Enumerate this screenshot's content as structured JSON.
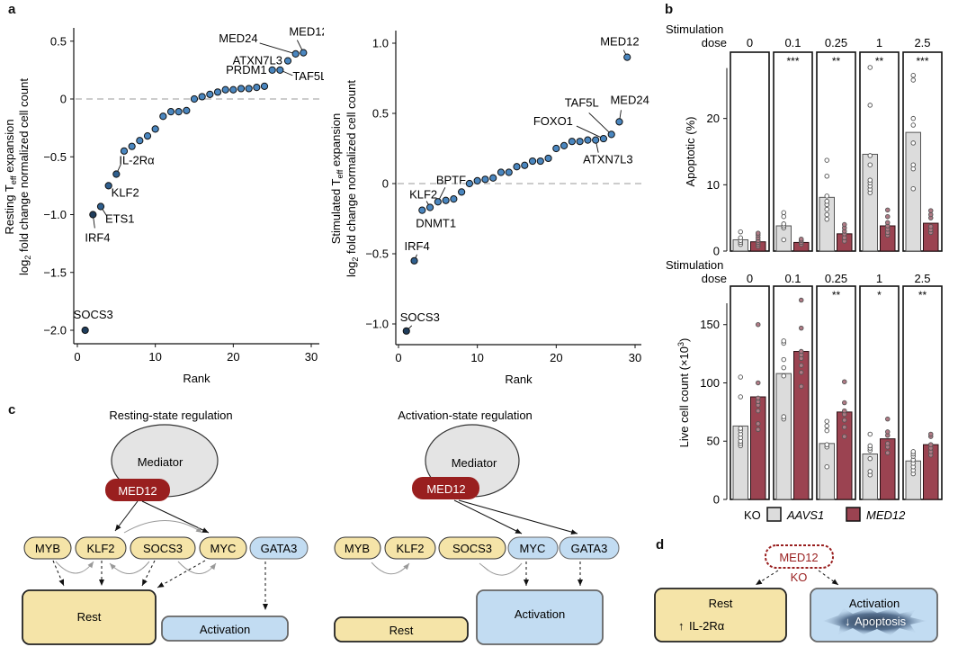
{
  "panels": {
    "a": "a",
    "b": "b",
    "c": "c",
    "d": "d"
  },
  "chart_data": [
    {
      "id": "resting",
      "type": "scatter",
      "title": "",
      "xlabel": "Rank",
      "ylabel_line1": "Resting T",
      "ylabel_sub1": "eff",
      "ylabel_line1_tail": " expansion",
      "ylabel_line2_pre": "log",
      "ylabel_sub2": "2",
      "ylabel_line2_tail": " fold change normalized cell count",
      "xlim": [
        0,
        30
      ],
      "ylim": [
        -2.1,
        0.6
      ],
      "xticks": [
        0,
        10,
        20,
        30
      ],
      "yticks": [
        0.5,
        0,
        -0.5,
        -1.0,
        -1.5,
        -2.0
      ],
      "ytick_labels": [
        "0.5",
        "0",
        "−0.5",
        "−1.0",
        "−1.5",
        "−2.0"
      ],
      "reference_line": 0,
      "points": [
        {
          "rank": 1,
          "value": -2.0,
          "label": "SOCS3"
        },
        {
          "rank": 2,
          "value": -1.0,
          "label": "IRF4"
        },
        {
          "rank": 3,
          "value": -0.93,
          "label": "ETS1"
        },
        {
          "rank": 4,
          "value": -0.75,
          "label": "KLF2"
        },
        {
          "rank": 5,
          "value": -0.65,
          "label": "IL-2Rα"
        },
        {
          "rank": 6,
          "value": -0.45
        },
        {
          "rank": 7,
          "value": -0.41
        },
        {
          "rank": 8,
          "value": -0.36
        },
        {
          "rank": 9,
          "value": -0.32
        },
        {
          "rank": 10,
          "value": -0.26
        },
        {
          "rank": 11,
          "value": -0.15
        },
        {
          "rank": 12,
          "value": -0.11
        },
        {
          "rank": 13,
          "value": -0.11
        },
        {
          "rank": 14,
          "value": -0.1
        },
        {
          "rank": 15,
          "value": 0.0
        },
        {
          "rank": 16,
          "value": 0.02
        },
        {
          "rank": 17,
          "value": 0.04
        },
        {
          "rank": 18,
          "value": 0.06
        },
        {
          "rank": 19,
          "value": 0.08
        },
        {
          "rank": 20,
          "value": 0.08
        },
        {
          "rank": 21,
          "value": 0.09
        },
        {
          "rank": 22,
          "value": 0.09
        },
        {
          "rank": 23,
          "value": 0.1
        },
        {
          "rank": 24,
          "value": 0.11
        },
        {
          "rank": 25,
          "value": 0.25,
          "label": "PRDM1"
        },
        {
          "rank": 26,
          "value": 0.25,
          "label": "TAF5L"
        },
        {
          "rank": 27,
          "value": 0.33,
          "label": "ATXN7L3"
        },
        {
          "rank": 28,
          "value": 0.39,
          "label": "MED24"
        },
        {
          "rank": 29,
          "value": 0.4,
          "label": "MED12"
        }
      ]
    },
    {
      "id": "stimulated",
      "type": "scatter",
      "title": "",
      "xlabel": "Rank",
      "ylabel_line1": "Stimulated T",
      "ylabel_sub1": "eff",
      "ylabel_line1_tail": " expansion",
      "ylabel_line2_pre": "log",
      "ylabel_sub2": "2",
      "ylabel_line2_tail": " fold change normalized cell count",
      "xlim": [
        0,
        30
      ],
      "ylim": [
        -1.15,
        1.1
      ],
      "xticks": [
        0,
        10,
        20,
        30
      ],
      "yticks": [
        1.0,
        0.5,
        0,
        -0.5,
        -1.0
      ],
      "ytick_labels": [
        "1.0",
        "0.5",
        "0",
        "−0.5",
        "−1.0"
      ],
      "reference_line": 0,
      "points": [
        {
          "rank": 1,
          "value": -1.05,
          "label": "SOCS3"
        },
        {
          "rank": 2,
          "value": -0.55,
          "label": "IRF4"
        },
        {
          "rank": 3,
          "value": -0.19,
          "label": "DNMT1"
        },
        {
          "rank": 4,
          "value": -0.17,
          "label": "KLF2"
        },
        {
          "rank": 5,
          "value": -0.13,
          "label": "BPTF"
        },
        {
          "rank": 6,
          "value": -0.12
        },
        {
          "rank": 7,
          "value": -0.11
        },
        {
          "rank": 8,
          "value": -0.06
        },
        {
          "rank": 9,
          "value": 0.0
        },
        {
          "rank": 10,
          "value": 0.02
        },
        {
          "rank": 11,
          "value": 0.03
        },
        {
          "rank": 12,
          "value": 0.04
        },
        {
          "rank": 13,
          "value": 0.08
        },
        {
          "rank": 14,
          "value": 0.08
        },
        {
          "rank": 15,
          "value": 0.12
        },
        {
          "rank": 16,
          "value": 0.13
        },
        {
          "rank": 17,
          "value": 0.16
        },
        {
          "rank": 18,
          "value": 0.16
        },
        {
          "rank": 19,
          "value": 0.18
        },
        {
          "rank": 20,
          "value": 0.25
        },
        {
          "rank": 21,
          "value": 0.27
        },
        {
          "rank": 22,
          "value": 0.3
        },
        {
          "rank": 23,
          "value": 0.3
        },
        {
          "rank": 24,
          "value": 0.31
        },
        {
          "rank": 25,
          "value": 0.31,
          "label": "ATXN7L3"
        },
        {
          "rank": 26,
          "value": 0.32,
          "label": "FOXO1"
        },
        {
          "rank": 27,
          "value": 0.35,
          "label": "TAF5L"
        },
        {
          "rank": 28,
          "value": 0.44,
          "label": "MED24"
        },
        {
          "rank": 29,
          "value": 0.9,
          "label": "MED12"
        }
      ]
    },
    {
      "id": "apoptotic",
      "type": "bar",
      "facet_title": "Stimulation",
      "facet_title2": "dose",
      "categories": [
        "0",
        "0.1",
        "0.25",
        "1",
        "2.5"
      ],
      "ylabel": "Apoptotic (%)",
      "ylim": [
        0,
        30
      ],
      "yticks": [
        0,
        10,
        20
      ],
      "significance": [
        "",
        "***",
        "**",
        "**",
        "***"
      ],
      "series": [
        {
          "name": "AAVS1",
          "values": [
            1.7,
            3.8,
            8.1,
            14.6,
            17.9
          ],
          "points": [
            [
              1.0,
              1.3,
              1.6,
              2.0,
              2.9
            ],
            [
              1.7,
              3.5,
              3.8,
              4.1,
              5.2,
              5.8
            ],
            [
              4.8,
              5.5,
              6.3,
              7.0,
              7.5,
              8.3,
              11.3,
              13.7
            ],
            [
              8.8,
              9.3,
              9.8,
              10.3,
              10.7,
              13.0,
              14.4,
              22.0,
              27.7
            ],
            [
              9.4,
              12.4,
              13.0,
              16.3,
              19.0,
              20.0,
              25.8,
              26.5
            ]
          ]
        },
        {
          "name": "MED12",
          "values": [
            1.4,
            1.3,
            2.6,
            3.8,
            4.2
          ],
          "points": [
            [
              0.7,
              1.0,
              1.3,
              1.6,
              2.0,
              2.4,
              2.7
            ],
            [
              1.0,
              1.3,
              1.6,
              1.8
            ],
            [
              1.5,
              2.0,
              2.6,
              3.0,
              3.5,
              4.0
            ],
            [
              2.4,
              2.8,
              3.3,
              3.8,
              4.3,
              5.2,
              6.2
            ],
            [
              2.8,
              3.2,
              3.7,
              5.0,
              5.5,
              6.1
            ]
          ]
        }
      ]
    },
    {
      "id": "livecount",
      "type": "bar",
      "facet_title": "Stimulation",
      "facet_title2": "dose",
      "categories": [
        "0",
        "0.1",
        "0.25",
        "1",
        "2.5"
      ],
      "ylabel_pre": "Live cell count (×10",
      "ylabel_sup": "3",
      "ylabel_post": ")",
      "ylim": [
        0,
        183
      ],
      "yticks": [
        0,
        50,
        100,
        150
      ],
      "significance": [
        "",
        "",
        "**",
        "*",
        "**"
      ],
      "series": [
        {
          "name": "AAVS1",
          "values": [
            63,
            108,
            48,
            39,
            33
          ],
          "points": [
            [
              46,
              48,
              50,
              53,
              56,
              59,
              61,
              88,
              105
            ],
            [
              69,
              71,
              106,
              113,
              120,
              134,
              136
            ],
            [
              28,
              45,
              47,
              59,
              63,
              67
            ],
            [
              21,
              24,
              35,
              42,
              44,
              46,
              56
            ],
            [
              22,
              25,
              28,
              31,
              34,
              37,
              39,
              41
            ]
          ]
        },
        {
          "name": "MED12",
          "values": [
            88,
            127,
            75,
            52,
            47
          ],
          "points": [
            [
              60,
              65,
              76,
              81,
              84,
              87,
              100,
              150
            ],
            [
              97,
              109,
              115,
              121,
              124,
              127,
              147,
              171
            ],
            [
              54,
              62,
              68,
              73,
              76,
              83,
              101
            ],
            [
              40,
              45,
              48,
              55,
              58,
              69
            ],
            [
              38,
              41,
              44,
              47,
              54,
              56
            ]
          ]
        }
      ]
    }
  ],
  "legend": {
    "prefix": "KO",
    "items": [
      {
        "name": "AAVS1",
        "color": "#dcdcdc"
      },
      {
        "name": "MED12",
        "color": "#9b4351"
      }
    ]
  },
  "colors": {
    "dot": "#4a86bf",
    "dot_dark": "#1f3d5c",
    "aavs1": "#dcdcdc",
    "med12": "#9b4351",
    "med12_box": "#991f1f",
    "rest": "#f5e4a8",
    "activation": "#c2dcf2",
    "mediator": "#e4e4e4"
  },
  "diagram_resting": {
    "title": "Resting-state regulation",
    "mediator": "Mediator",
    "med12": "MED12",
    "factors": [
      "MYB",
      "KLF2",
      "SOCS3",
      "MYC",
      "GATA3"
    ],
    "rest": "Rest",
    "activation": "Activation"
  },
  "diagram_activation": {
    "title": "Activation-state regulation",
    "mediator": "Mediator",
    "med12": "MED12",
    "factors": [
      "MYB",
      "KLF2",
      "SOCS3",
      "MYC",
      "GATA3"
    ],
    "rest": "Rest",
    "activation": "Activation"
  },
  "diagram_d": {
    "med12": "MED12",
    "ko": "KO",
    "rest": "Rest",
    "rest_effect_arrow": "↑",
    "rest_effect": "IL-2Rα",
    "activation": "Activation",
    "activation_effect_arrow": "↓",
    "activation_effect": "Apoptosis"
  }
}
